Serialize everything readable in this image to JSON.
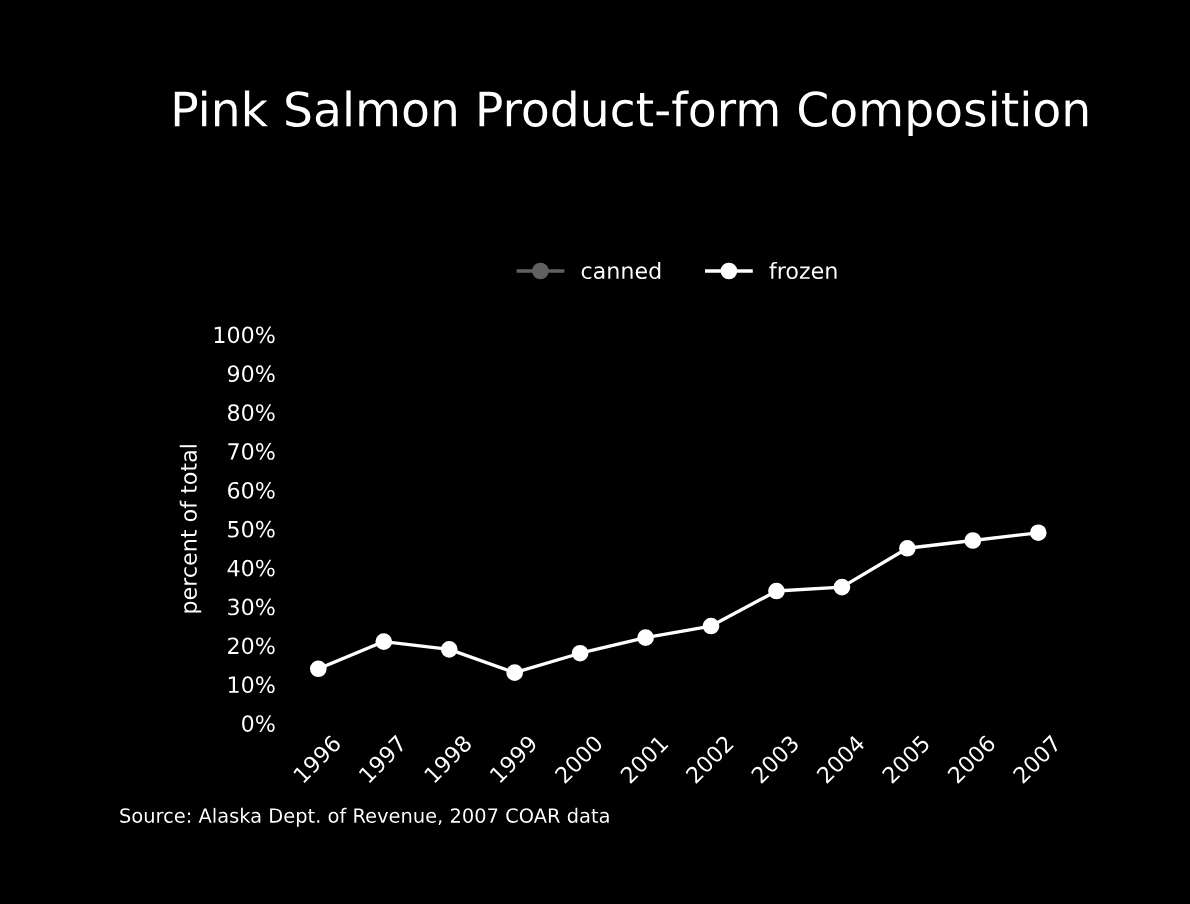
{
  "chart_data": {
    "type": "line",
    "title": "Pink Salmon Product-form Composition",
    "ylabel": "percent of total",
    "categories": [
      "1996",
      "1997",
      "1998",
      "1999",
      "2000",
      "2001",
      "2002",
      "2003",
      "2004",
      "2005",
      "2006",
      "2007"
    ],
    "series": [
      {
        "name": "canned",
        "color": "#606060",
        "values": [
          null,
          null,
          null,
          null,
          null,
          null,
          null,
          null,
          null,
          null,
          null,
          null
        ]
      },
      {
        "name": "frozen",
        "color": "#ffffff",
        "values": [
          14,
          21,
          19,
          13,
          18,
          22,
          25,
          34,
          35,
          45,
          47,
          49
        ]
      }
    ],
    "ylim": [
      0,
      100
    ],
    "yticks": [
      {
        "value": 0,
        "label": "0%"
      },
      {
        "value": 10,
        "label": "10%"
      },
      {
        "value": 20,
        "label": "20%"
      },
      {
        "value": 30,
        "label": "30%"
      },
      {
        "value": 40,
        "label": "40%"
      },
      {
        "value": 50,
        "label": "50%"
      },
      {
        "value": 60,
        "label": "60%"
      },
      {
        "value": 70,
        "label": "70%"
      },
      {
        "value": 80,
        "label": "80%"
      },
      {
        "value": 90,
        "label": "90%"
      },
      {
        "value": 100,
        "label": "100%"
      }
    ],
    "marker": "circle",
    "line_style": "solid",
    "legend": "top",
    "grid": false,
    "annotations": [
      "Source: Alaska Dept. of Revenue, 2007 COAR data"
    ]
  }
}
